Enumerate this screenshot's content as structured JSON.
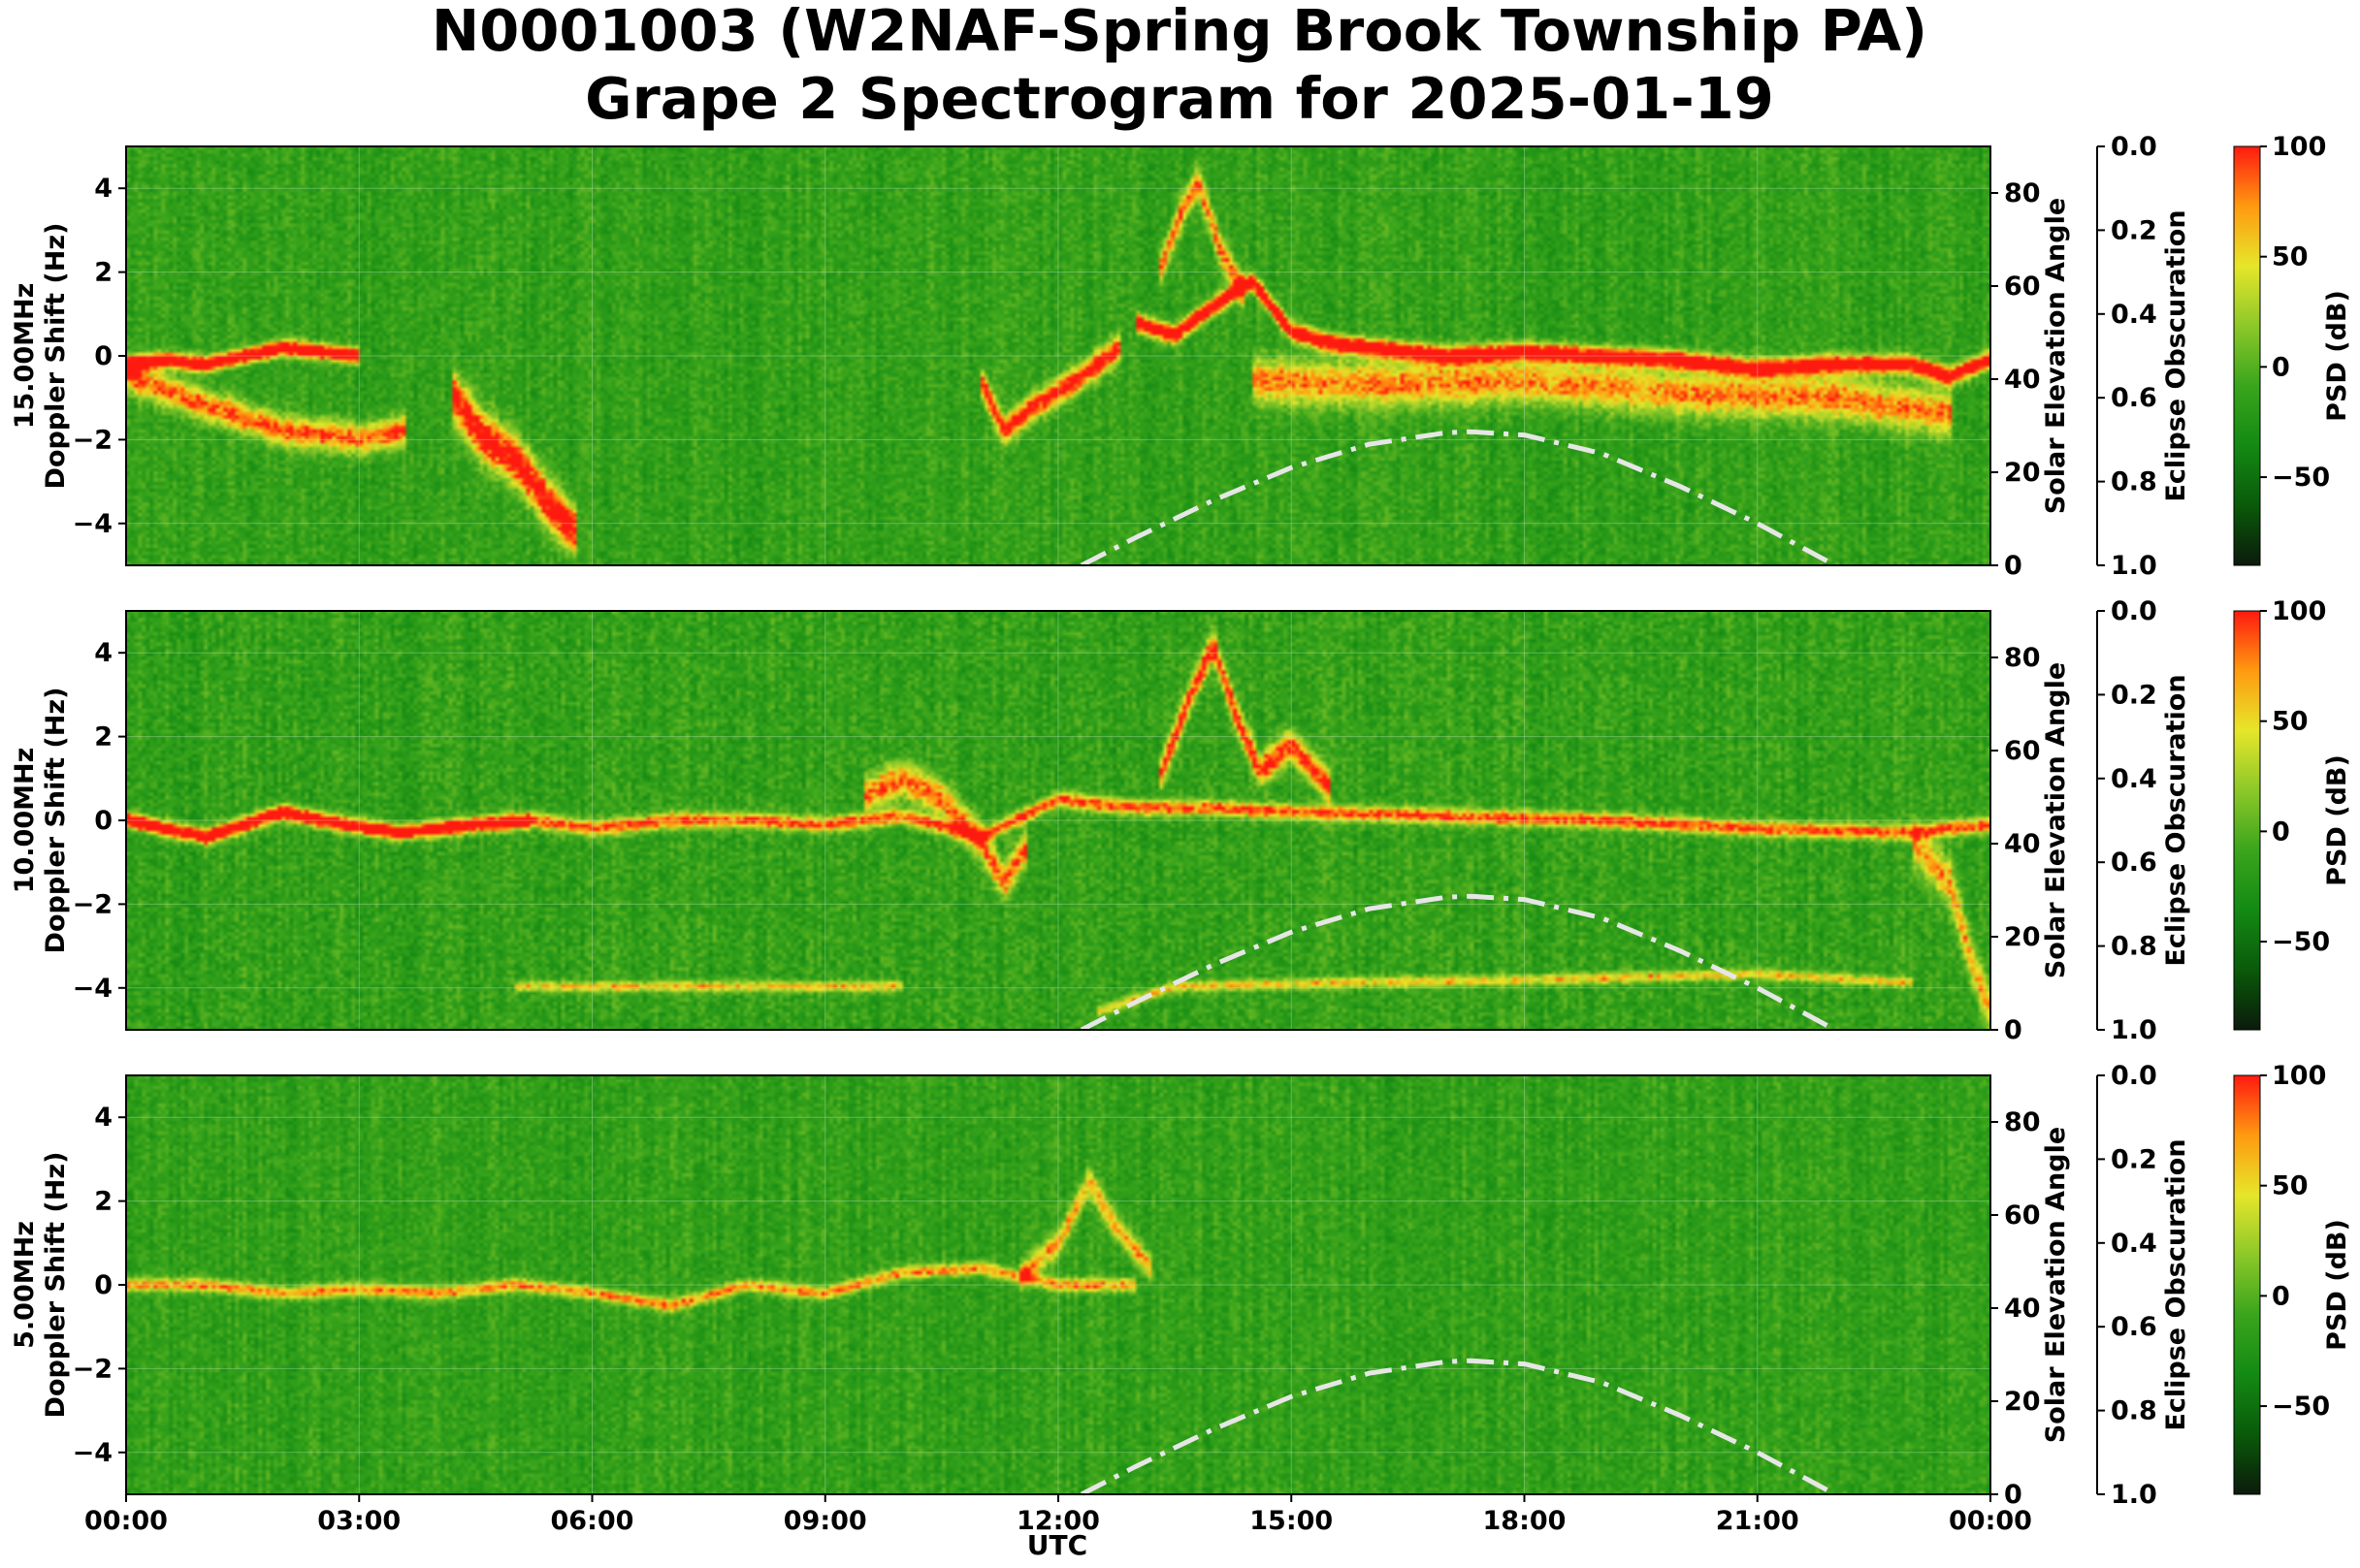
{
  "title_line1": "N0001003 (W2NAF-Spring Brook Township PA)",
  "title_line2": "Grape 2 Spectrogram for 2025-01-19",
  "colors": {
    "cmap": [
      "#0b1a0b",
      "#0a5a0a",
      "#138a13",
      "#3aa51c",
      "#8cc829",
      "#e6e62a",
      "#ff9a10",
      "#ff1a10"
    ],
    "curve": "#e6e6e6"
  },
  "chart_data": [
    {
      "type": "heatmap",
      "band": "15.00MHz",
      "ylabel": "Doppler Shift (Hz)",
      "ylim": [
        -5,
        5
      ],
      "yticks": [
        "4",
        "2",
        "0",
        "−2",
        "−4"
      ],
      "y2label": "Solar Elevation Angle",
      "y2lim": [
        0,
        90
      ],
      "y2ticks": [
        "0",
        "20",
        "40",
        "60",
        "80"
      ],
      "y3label": "Eclipse Obscuration",
      "y3ticks": [
        "0.0",
        "0.2",
        "0.4",
        "0.6",
        "0.8",
        "1.0"
      ],
      "colorbar_label": "PSD (dB)",
      "colorbar_range": [
        -90,
        100
      ],
      "colorbar_ticks": [
        "100",
        "50",
        "0",
        "−50"
      ],
      "noise": 0.9,
      "traces": [
        {
          "w": 0.17,
          "i": 0.98,
          "pts": [
            [
              0.0,
              -0.2
            ],
            [
              0.5,
              -0.1
            ],
            [
              1.0,
              -0.2
            ],
            [
              1.5,
              0.0
            ],
            [
              2.0,
              0.2
            ],
            [
              2.5,
              0.1
            ],
            [
              3.0,
              0.0
            ]
          ]
        },
        {
          "w": 0.35,
          "i": 0.55,
          "pts": [
            [
              0.0,
              -0.5
            ],
            [
              1.0,
              -1.2
            ],
            [
              2.0,
              -1.8
            ],
            [
              3.0,
              -2.0
            ],
            [
              3.6,
              -1.8
            ]
          ]
        },
        {
          "w": 0.55,
          "i": 0.75,
          "pts": [
            [
              4.2,
              -1.0
            ],
            [
              4.6,
              -2.0
            ],
            [
              5.0,
              -2.5
            ],
            [
              5.4,
              -3.5
            ],
            [
              5.8,
              -4.3
            ]
          ]
        },
        {
          "w": 0.3,
          "i": 0.7,
          "pts": [
            [
              11.0,
              -0.6
            ],
            [
              11.3,
              -1.8
            ],
            [
              11.7,
              -1.2
            ],
            [
              12.3,
              -0.5
            ],
            [
              12.8,
              0.2
            ]
          ]
        },
        {
          "w": 0.2,
          "i": 0.9,
          "pts": [
            [
              13.0,
              0.8
            ],
            [
              13.5,
              0.5
            ],
            [
              14.0,
              1.2
            ],
            [
              14.5,
              1.8
            ],
            [
              15.0,
              0.6
            ],
            [
              15.5,
              0.3
            ],
            [
              16.0,
              0.2
            ],
            [
              17.0,
              0.0
            ],
            [
              18.0,
              0.1
            ],
            [
              19.0,
              0.0
            ],
            [
              20.0,
              -0.1
            ],
            [
              21.0,
              -0.3
            ],
            [
              22.0,
              -0.2
            ],
            [
              23.0,
              -0.2
            ],
            [
              23.5,
              -0.5
            ],
            [
              24.0,
              -0.1
            ]
          ]
        },
        {
          "w": 0.35,
          "i": 0.55,
          "pts": [
            [
              13.3,
              2.0
            ],
            [
              13.6,
              3.5
            ],
            [
              13.8,
              4.2
            ],
            [
              14.1,
              2.5
            ],
            [
              14.4,
              1.5
            ]
          ]
        },
        {
          "w": 0.5,
          "i": 0.5,
          "pts": [
            [
              14.5,
              -0.6
            ],
            [
              16.0,
              -0.7
            ],
            [
              18.0,
              -0.6
            ],
            [
              20.0,
              -0.9
            ],
            [
              22.0,
              -1.0
            ],
            [
              23.5,
              -1.4
            ]
          ]
        }
      ]
    },
    {
      "type": "heatmap",
      "band": "10.00MHz",
      "ylabel": "Doppler Shift (Hz)",
      "ylim": [
        -5,
        5
      ],
      "yticks": [
        "4",
        "2",
        "0",
        "−2",
        "−4"
      ],
      "y2label": "Solar Elevation Angle",
      "y2lim": [
        0,
        90
      ],
      "y2ticks": [
        "0",
        "20",
        "40",
        "60",
        "80"
      ],
      "y3label": "Eclipse Obscuration",
      "y3ticks": [
        "0.0",
        "0.2",
        "0.4",
        "0.6",
        "0.8",
        "1.0"
      ],
      "colorbar_label": "PSD (dB)",
      "colorbar_range": [
        -90,
        100
      ],
      "colorbar_ticks": [
        "100",
        "50",
        "0",
        "−50"
      ],
      "noise": 1.0,
      "traces": [
        {
          "w": 0.17,
          "i": 0.95,
          "pts": [
            [
              0.0,
              0.0
            ],
            [
              0.5,
              -0.2
            ],
            [
              1.0,
              -0.4
            ],
            [
              1.5,
              -0.1
            ],
            [
              2.0,
              0.2
            ],
            [
              2.5,
              0.0
            ],
            [
              3.5,
              -0.3
            ],
            [
              4.5,
              -0.1
            ],
            [
              5.2,
              0.0
            ]
          ]
        },
        {
          "w": 0.17,
          "i": 0.6,
          "pts": [
            [
              5.2,
              0.0
            ],
            [
              6.0,
              -0.2
            ],
            [
              7.0,
              0.0
            ],
            [
              8.0,
              0.0
            ],
            [
              9.0,
              -0.1
            ],
            [
              10.0,
              0.1
            ],
            [
              11.0,
              -0.4
            ],
            [
              12.0,
              0.5
            ],
            [
              13.0,
              0.3
            ],
            [
              14.0,
              0.3
            ],
            [
              15.0,
              0.2
            ],
            [
              17.0,
              0.1
            ],
            [
              19.0,
              0.0
            ],
            [
              21.0,
              -0.2
            ],
            [
              23.0,
              -0.3
            ],
            [
              24.0,
              -0.1
            ]
          ]
        },
        {
          "w": 0.4,
          "i": 0.55,
          "pts": [
            [
              9.5,
              0.6
            ],
            [
              10.0,
              1.0
            ],
            [
              10.5,
              0.5
            ],
            [
              11.0,
              -0.5
            ],
            [
              11.3,
              -1.5
            ],
            [
              11.6,
              -0.6
            ]
          ]
        },
        {
          "w": 0.35,
          "i": 0.65,
          "pts": [
            [
              13.3,
              1.0
            ],
            [
              13.7,
              3.0
            ],
            [
              14.0,
              4.2
            ],
            [
              14.3,
              2.5
            ],
            [
              14.6,
              1.2
            ],
            [
              15.0,
              1.8
            ],
            [
              15.5,
              0.8
            ]
          ]
        },
        {
          "w": 0.12,
          "i": 0.4,
          "pts": [
            [
              5.0,
              -4.0
            ],
            [
              8.0,
              -4.0
            ],
            [
              10.0,
              -4.0
            ]
          ]
        },
        {
          "w": 0.12,
          "i": 0.4,
          "pts": [
            [
              12.5,
              -4.6
            ],
            [
              13.5,
              -4.0
            ],
            [
              16.0,
              -3.9
            ],
            [
              19.0,
              -3.8
            ],
            [
              21.0,
              -3.7
            ],
            [
              23.0,
              -3.9
            ]
          ]
        },
        {
          "w": 0.5,
          "i": 0.45,
          "pts": [
            [
              23.0,
              -0.5
            ],
            [
              23.5,
              -1.5
            ],
            [
              23.8,
              -3.5
            ],
            [
              24.0,
              -4.5
            ]
          ]
        }
      ]
    },
    {
      "type": "heatmap",
      "band": "5.00MHz",
      "ylabel": "Doppler Shift (Hz)",
      "ylim": [
        -5,
        5
      ],
      "yticks": [
        "4",
        "2",
        "0",
        "−2",
        "−4"
      ],
      "y2label": "Solar Elevation Angle",
      "y2lim": [
        0,
        90
      ],
      "y2ticks": [
        "0",
        "20",
        "40",
        "60",
        "80"
      ],
      "y3label": "Eclipse Obscuration",
      "y3ticks": [
        "0.0",
        "0.2",
        "0.4",
        "0.6",
        "0.8",
        "1.0"
      ],
      "colorbar_label": "PSD (dB)",
      "colorbar_range": [
        -90,
        100
      ],
      "colorbar_ticks": [
        "100",
        "50",
        "0",
        "−50"
      ],
      "noise": 0.85,
      "traces": [
        {
          "w": 0.15,
          "i": 0.5,
          "pts": [
            [
              0.0,
              0.0
            ],
            [
              1.0,
              0.0
            ],
            [
              2.0,
              -0.2
            ],
            [
              3.0,
              -0.1
            ],
            [
              4.0,
              -0.2
            ],
            [
              5.0,
              0.0
            ],
            [
              6.0,
              -0.2
            ],
            [
              7.0,
              -0.5
            ],
            [
              8.0,
              0.0
            ],
            [
              9.0,
              -0.2
            ],
            [
              10.0,
              0.3
            ],
            [
              11.0,
              0.4
            ],
            [
              12.0,
              0.0
            ],
            [
              13.0,
              0.0
            ]
          ]
        },
        {
          "w": 0.3,
          "i": 0.45,
          "pts": [
            [
              11.5,
              0.2
            ],
            [
              12.0,
              1.0
            ],
            [
              12.4,
              2.5
            ],
            [
              12.7,
              1.5
            ],
            [
              13.2,
              0.4
            ]
          ]
        }
      ]
    }
  ],
  "xaxis": {
    "label": "UTC",
    "ticks": [
      "00:00",
      "03:00",
      "06:00",
      "09:00",
      "12:00",
      "15:00",
      "18:00",
      "21:00",
      "00:00"
    ]
  },
  "solar_elevation": {
    "x_hours": [
      12.3,
      13.0,
      14.0,
      15.0,
      16.0,
      17.0,
      17.3,
      18.0,
      19.0,
      20.0,
      21.0,
      22.0
    ],
    "deg": [
      0,
      6,
      14,
      21,
      26,
      28.5,
      28.7,
      28,
      24,
      17,
      9,
      0
    ]
  }
}
